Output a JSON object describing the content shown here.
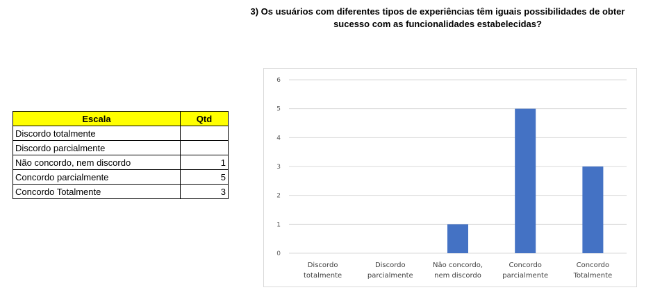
{
  "title": {
    "line1": "3) Os usuários com diferentes tipos de experiências têm iguais possibilidades de obter",
    "line2": "sucesso com as funcionalidades estabelecidas?"
  },
  "table": {
    "headers": [
      "Escala",
      "Qtd"
    ],
    "rows": [
      {
        "label": "Discordo totalmente",
        "qtd": ""
      },
      {
        "label": "Discordo parcialmente",
        "qtd": ""
      },
      {
        "label": "Não concordo, nem discordo",
        "qtd": "1"
      },
      {
        "label": "Concordo parcialmente",
        "qtd": "5"
      },
      {
        "label": "Concordo Totalmente",
        "qtd": "3"
      }
    ]
  },
  "colors": {
    "bar": "#4472c4",
    "grid": "#d9d9d9",
    "header_bg": "#ffff00"
  },
  "chart_data": {
    "type": "bar",
    "categories": [
      [
        "Discordo",
        "totalmente"
      ],
      [
        "Discordo",
        "parcialmente"
      ],
      [
        "Não concordo,",
        "nem discordo"
      ],
      [
        "Concordo",
        "parcialmente"
      ],
      [
        "Concordo",
        "Totalmente"
      ]
    ],
    "values": [
      0,
      0,
      1,
      5,
      3
    ],
    "yticks": [
      0,
      1,
      2,
      3,
      4,
      5,
      6
    ],
    "ylim": [
      0,
      6
    ],
    "grid": true,
    "legend": "none"
  }
}
